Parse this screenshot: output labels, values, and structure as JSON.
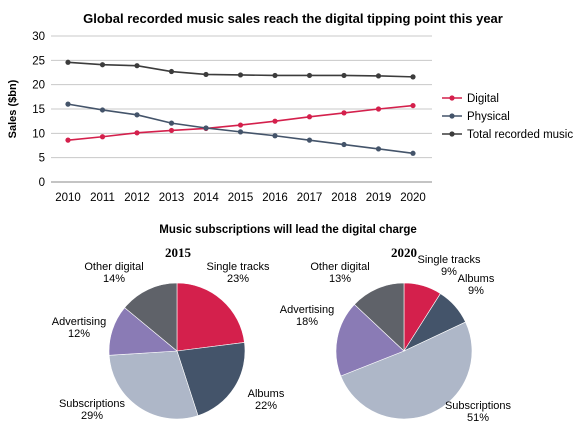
{
  "chart_data": [
    {
      "type": "line",
      "title": "Global recorded music sales reach the digital tipping point this year",
      "xlabel": "",
      "ylabel": "Sales ($bn)",
      "x": [
        "2010",
        "2011",
        "2012",
        "2013",
        "2014",
        "2015",
        "2016",
        "2017",
        "2018",
        "2019",
        "2020"
      ],
      "ylim": [
        0,
        30
      ],
      "yticks": [
        "0",
        "5",
        "10",
        "15",
        "20",
        "25",
        "30"
      ],
      "grid": true,
      "legend": "right",
      "series": [
        {
          "name": "Digital",
          "color": "#d4204c",
          "values": [
            8.6,
            9.3,
            10.1,
            10.6,
            11.0,
            11.7,
            12.5,
            13.4,
            14.2,
            15.0,
            15.7
          ]
        },
        {
          "name": "Physical",
          "color": "#44546a",
          "values": [
            16.0,
            14.8,
            13.8,
            12.1,
            11.1,
            10.3,
            9.5,
            8.6,
            7.7,
            6.8,
            5.9
          ]
        },
        {
          "name": "Total recorded music",
          "color": "#3c3c3c",
          "values": [
            24.6,
            24.1,
            23.9,
            22.7,
            22.1,
            22.0,
            21.9,
            21.9,
            21.9,
            21.8,
            21.6
          ]
        }
      ]
    },
    {
      "type": "pie",
      "suptitle": "Music subscriptions will lead the digital charge",
      "title": "2015",
      "slices": [
        {
          "name": "Single tracks",
          "value": 23,
          "label": "23%",
          "color": "#d4204c"
        },
        {
          "name": "Albums",
          "value": 22,
          "label": "22%",
          "color": "#44546a"
        },
        {
          "name": "Subscriptions",
          "value": 29,
          "label": "29%",
          "color": "#aeb7c8"
        },
        {
          "name": "Advertising",
          "value": 12,
          "label": "12%",
          "color": "#8a7bb5"
        },
        {
          "name": "Other digital",
          "value": 14,
          "label": "14%",
          "color": "#5f6269"
        }
      ]
    },
    {
      "type": "pie",
      "title": "2020",
      "slices": [
        {
          "name": "Single tracks",
          "value": 9,
          "label": "9%",
          "color": "#d4204c"
        },
        {
          "name": "Albums",
          "value": 9,
          "label": "9%",
          "color": "#44546a"
        },
        {
          "name": "Subscriptions",
          "value": 51,
          "label": "51%",
          "color": "#aeb7c8"
        },
        {
          "name": "Advertising",
          "value": 18,
          "label": "18%",
          "color": "#8a7bb5"
        },
        {
          "name": "Other digital",
          "value": 13,
          "label": "13%",
          "color": "#5f6269"
        }
      ]
    }
  ]
}
